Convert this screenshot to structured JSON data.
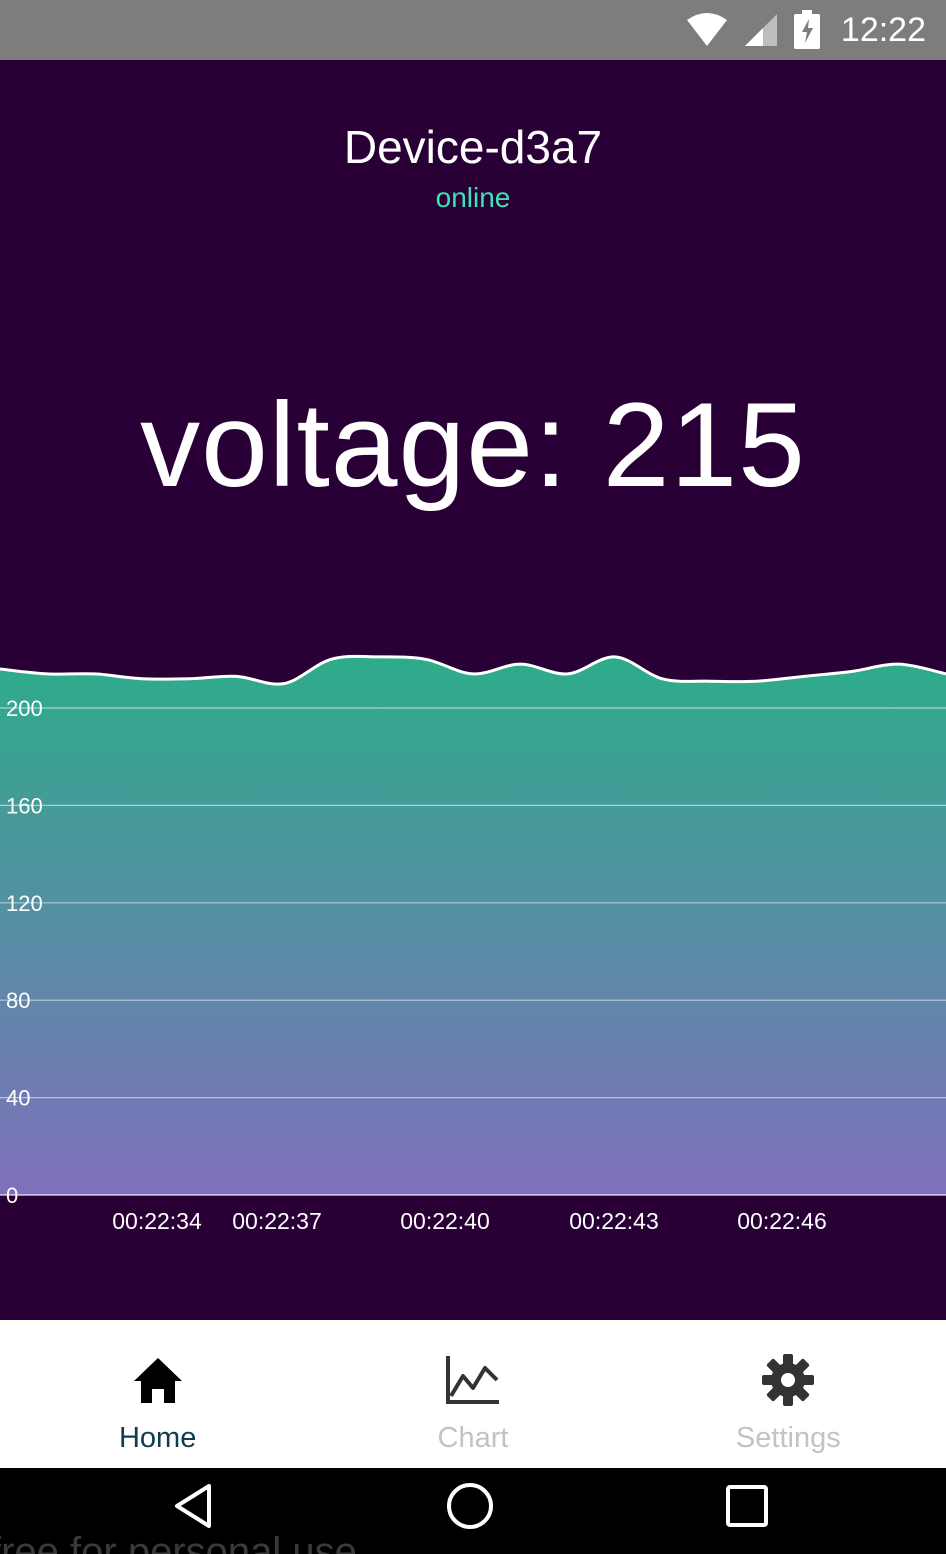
{
  "status_bar": {
    "time": "12:22",
    "icons": [
      "wifi-icon",
      "cell-signal-icon",
      "battery-charging-icon"
    ]
  },
  "device": {
    "name": "Device-d3a7",
    "status": "online",
    "status_color": "#3ee0b4"
  },
  "reading": {
    "text": "voltage: 215"
  },
  "colors": {
    "background": "#290035",
    "area_top": "#2dac8a",
    "area_bottom": "#7f70bc",
    "line": "#ffffff"
  },
  "chart_data": {
    "type": "area",
    "y_ticks": [
      "0",
      "40",
      "80",
      "120",
      "160",
      "200"
    ],
    "ylim": [
      0,
      225
    ],
    "x_tick_labels": [
      "00:22:34",
      "00:22:37",
      "00:22:40",
      "00:22:43",
      "00:22:46"
    ],
    "grid": true,
    "series": [
      {
        "values": [
          216,
          214,
          214,
          212,
          212,
          213,
          210,
          220,
          221,
          220,
          214,
          218,
          214,
          221,
          212,
          211,
          211,
          213,
          215,
          218,
          214
        ]
      }
    ]
  },
  "bottom_nav": {
    "items": [
      {
        "label": "Home",
        "icon": "home-icon",
        "active": true
      },
      {
        "label": "Chart",
        "icon": "chart-icon",
        "active": false
      },
      {
        "label": "Settings",
        "icon": "gear-icon",
        "active": false
      }
    ]
  },
  "system_nav": {
    "buttons": [
      "back-icon",
      "home-circle-icon",
      "recents-icon"
    ]
  },
  "watermark": "free for personal use"
}
